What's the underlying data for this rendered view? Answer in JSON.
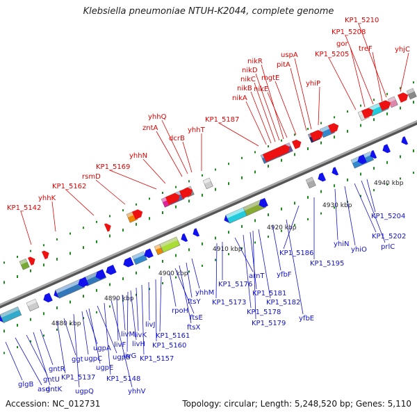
{
  "title": "Klebsiella pneumoniae NTUH-K2044, complete genome",
  "footer": {
    "accession": "Accession: NC_012731",
    "summary": "Topology: circular; Length: 5,248,520 bp; Genes: 5,110"
  },
  "colors": {
    "backbone": "#9a9a9a",
    "forward_label": "#dd0000",
    "reverse_label": "#1010cc",
    "tick": "#1a8a1a"
  },
  "scale_labels": [
    "4880 kbp",
    "4890 kbp",
    "4900 kbp",
    "4910 kbp",
    "4920 kbp",
    "4930 kbp",
    "4940 kbp"
  ],
  "forward_labels": [
    "KP1_5142",
    "yhhK",
    "KP1_5162",
    "rsmD",
    "KP1_5169",
    "yhhN",
    "zntA",
    "yhhQ",
    "dcrB",
    "yhhT",
    "KP1_5187",
    "nikA",
    "nikB",
    "nikC",
    "nikD",
    "nikR",
    "nikE",
    "mgtE",
    "pitA",
    "uspA",
    "yhiP",
    "KP1_5205",
    "gor",
    "KP1_5208",
    "KP1_5210",
    "treF",
    "yhjC"
  ],
  "reverse_labels": [
    "glgB",
    "asd",
    "gntU",
    "gntK",
    "gntR",
    "KP1_5137",
    "ggt",
    "ugpQ",
    "ugpC",
    "ugpE",
    "ugpA",
    "ugpB",
    "KP1_5148",
    "yhhV",
    "livM",
    "livF",
    "livG",
    "livK",
    "livH",
    "KP1_5157",
    "livJ",
    "KP1_5160",
    "KP1_5161",
    "rpoH",
    "ftsE",
    "ftsX",
    "ftsY",
    "yhhM",
    "KP1_5173",
    "KP1_5176",
    "arnT",
    "KP1_5178",
    "KP1_5181",
    "KP1_5179",
    "KP1_5182",
    "yfbF",
    "yfbE",
    "KP1_5186",
    "KP1_5195",
    "yhiN",
    "yhiO",
    "KP1_5202",
    "prlC",
    "KP1_5204"
  ]
}
